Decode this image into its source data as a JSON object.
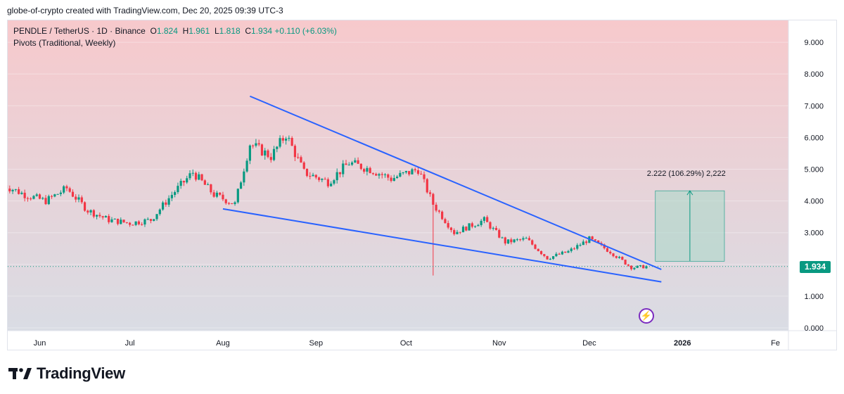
{
  "caption": "globe-of-crypto created with TradingView.com, Dec 20, 2025 09:39 UTC-3",
  "header": {
    "symbol": "PENDLE / TetherUS · 1D · Binance",
    "o_label": "O",
    "o_value": "1.824",
    "h_label": "H",
    "h_value": "1.961",
    "l_label": "L",
    "l_value": "1.818",
    "c_label": "C",
    "c_value": "1.934",
    "change": "+0.110 (+6.03%)",
    "indicator": "Pivots (Traditional, Weekly)"
  },
  "price_tag": "1.934",
  "measure_label": "2.222 (106.29%) 2,222",
  "footer": {
    "brand": "TradingView"
  },
  "colors": {
    "up": "#089981",
    "down": "#f23645",
    "trend": "#2962ff",
    "bg_top": "#f7c9cc",
    "bg_bottom": "#d9dce4"
  },
  "chart_data": {
    "type": "candlestick",
    "x_ticks": [
      "Jun",
      "Jul",
      "Aug",
      "Sep",
      "Oct",
      "Nov",
      "Dec",
      "2026",
      "Fe"
    ],
    "y_ticks": [
      "9.000",
      "8.000",
      "7.000",
      "6.000",
      "5.000",
      "4.000",
      "3.000",
      "2.000",
      "1.000",
      "0.000"
    ],
    "ylim": [
      0,
      9.6
    ],
    "last_price": 1.934,
    "series": [
      {
        "date": "2025-05-20",
        "close": 4.5
      },
      {
        "date": "2025-05-27",
        "close": 4.2
      },
      {
        "date": "2025-06-03",
        "close": 4.0
      },
      {
        "date": "2025-06-10",
        "close": 4.4
      },
      {
        "date": "2025-06-17",
        "close": 3.7
      },
      {
        "date": "2025-06-24",
        "close": 3.4
      },
      {
        "date": "2025-07-01",
        "close": 3.3
      },
      {
        "date": "2025-07-08",
        "close": 3.4
      },
      {
        "date": "2025-07-15",
        "close": 4.2
      },
      {
        "date": "2025-07-22",
        "close": 4.9
      },
      {
        "date": "2025-07-29",
        "close": 4.2
      },
      {
        "date": "2025-08-05",
        "close": 3.9
      },
      {
        "date": "2025-08-10",
        "close": 5.8
      },
      {
        "date": "2025-08-17",
        "close": 5.4
      },
      {
        "date": "2025-08-22",
        "close": 6.1
      },
      {
        "date": "2025-08-28",
        "close": 4.9
      },
      {
        "date": "2025-09-05",
        "close": 4.6
      },
      {
        "date": "2025-09-12",
        "close": 5.2
      },
      {
        "date": "2025-09-19",
        "close": 5.0
      },
      {
        "date": "2025-09-26",
        "close": 4.7
      },
      {
        "date": "2025-10-05",
        "close": 5.0
      },
      {
        "date": "2025-10-10",
        "close": 3.9
      },
      {
        "date": "2025-10-17",
        "close": 3.0
      },
      {
        "date": "2025-10-27",
        "close": 3.4
      },
      {
        "date": "2025-11-03",
        "close": 2.7
      },
      {
        "date": "2025-11-10",
        "close": 2.8
      },
      {
        "date": "2025-11-17",
        "close": 2.2
      },
      {
        "date": "2025-11-24",
        "close": 2.4
      },
      {
        "date": "2025-12-01",
        "close": 2.8
      },
      {
        "date": "2025-12-08",
        "close": 2.4
      },
      {
        "date": "2025-12-15",
        "close": 1.9
      },
      {
        "date": "2025-12-20",
        "close": 1.934
      }
    ],
    "notable_wick": {
      "date": "2025-10-10",
      "low": 1.65
    },
    "trendlines": [
      {
        "name": "upper",
        "from": {
          "date": "2025-08-10",
          "price": 7.3
        },
        "to": {
          "date": "2025-12-25",
          "price": 1.84
        }
      },
      {
        "name": "lower",
        "from": {
          "date": "2025-08-01",
          "price": 3.75
        },
        "to": {
          "date": "2025-12-25",
          "price": 1.45
        }
      }
    ],
    "measurement": {
      "from_date": "2025-12-23",
      "to_date": "2026-01-15",
      "from_price": 2.1,
      "to_price": 4.32,
      "change": "2.222 (106.29%) 2,222"
    }
  }
}
